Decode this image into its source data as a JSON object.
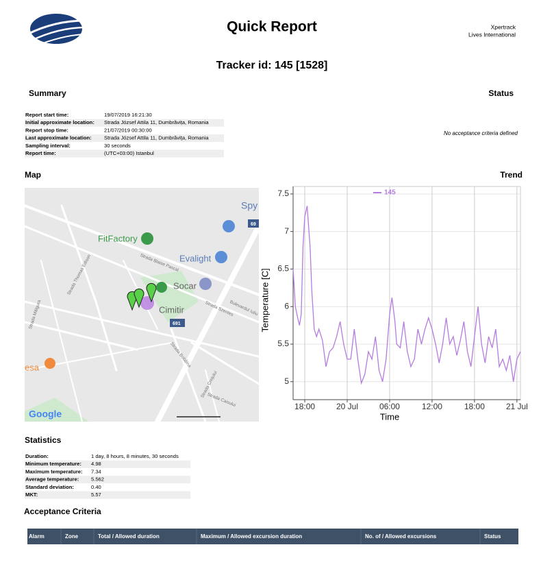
{
  "header": {
    "title": "Quick Report",
    "company": "Xpertrack",
    "company_sub": "Lives International",
    "tracker": "Tracker id: 145 [1528]"
  },
  "summary": {
    "title": "Summary",
    "rows": [
      [
        "Report start time:",
        "19/07/2019 16:21:30"
      ],
      [
        "Initial approximate location:",
        "Strada József Attila 11, Dumbrăvița, Romania"
      ],
      [
        "Report stop time:",
        "21/07/2019 00:30:00"
      ],
      [
        "Last approximate location:",
        "Strada József Attila 11, Dumbrăvița, Romania"
      ],
      [
        "Sampling interval:",
        "30 seconds"
      ],
      [
        "Report time:",
        "(UTC+03:00) Istanbul"
      ]
    ]
  },
  "status": {
    "title": "Status",
    "message": "No acceptance criteria defined"
  },
  "map": {
    "title": "Map",
    "labels": [
      "Spy",
      "FitFactory",
      "Evalight",
      "Socar",
      "Cimitir",
      "691",
      "69",
      "Strada Blaise Pascal",
      "Bulevardul Iuliu",
      "Strada Szentes",
      "Strada Bobâlna",
      "Strada Crețului",
      "Strada Caisului",
      "Strada Thomas Edison",
      "Strada Mălgura",
      "esa",
      "Google"
    ]
  },
  "trend": {
    "title": "Trend"
  },
  "chart_data": {
    "type": "line",
    "xlabel": "Time",
    "ylabel": "Temperature [C]",
    "x": [
      "19 Jul 16:21",
      "19 Jul 16:40",
      "19 Jul 17:00",
      "19 Jul 17:15",
      "19 Jul 17:30",
      "19 Jul 17:45",
      "19 Jul 18:00",
      "19 Jul 18:20",
      "19 Jul 18:45",
      "19 Jul 19:00",
      "19 Jul 19:20",
      "19 Jul 19:40",
      "19 Jul 20:00",
      "19 Jul 20:30",
      "19 Jul 21:00",
      "19 Jul 21:30",
      "19 Jul 22:00",
      "19 Jul 22:30",
      "19 Jul 23:00",
      "19 Jul 23:30",
      "20 Jul 00:00",
      "20 Jul 00:30",
      "20 Jul 01:00",
      "20 Jul 01:30",
      "20 Jul 02:00",
      "20 Jul 02:30",
      "20 Jul 03:00",
      "20 Jul 03:30",
      "20 Jul 04:00",
      "20 Jul 04:30",
      "20 Jul 05:00",
      "20 Jul 05:30",
      "20 Jul 06:00",
      "20 Jul 06:20",
      "20 Jul 06:45",
      "20 Jul 07:00",
      "20 Jul 07:30",
      "20 Jul 08:00",
      "20 Jul 08:30",
      "20 Jul 09:00",
      "20 Jul 09:30",
      "20 Jul 10:00",
      "20 Jul 10:30",
      "20 Jul 11:00",
      "20 Jul 11:30",
      "20 Jul 12:00",
      "20 Jul 12:30",
      "20 Jul 13:00",
      "20 Jul 13:30",
      "20 Jul 14:00",
      "20 Jul 14:30",
      "20 Jul 15:00",
      "20 Jul 15:30",
      "20 Jul 16:00",
      "20 Jul 16:30",
      "20 Jul 17:00",
      "20 Jul 17:30",
      "20 Jul 18:00",
      "20 Jul 18:30",
      "20 Jul 19:00",
      "20 Jul 19:30",
      "20 Jul 20:00",
      "20 Jul 20:30",
      "20 Jul 21:00",
      "20 Jul 21:30",
      "20 Jul 22:00",
      "20 Jul 22:30",
      "20 Jul 23:00",
      "20 Jul 23:30",
      "21 Jul 00:00",
      "21 Jul 00:30"
    ],
    "series": [
      {
        "name": "145",
        "color": "#b57be0",
        "values": [
          6.5,
          6.0,
          5.85,
          5.75,
          5.9,
          6.8,
          7.2,
          7.34,
          6.8,
          6.2,
          5.7,
          5.6,
          5.7,
          5.55,
          5.2,
          5.4,
          5.45,
          5.6,
          5.8,
          5.5,
          5.3,
          5.3,
          5.7,
          5.3,
          4.98,
          5.1,
          5.4,
          5.3,
          5.6,
          5.15,
          5.0,
          5.3,
          5.9,
          6.12,
          5.8,
          5.5,
          5.45,
          5.8,
          5.4,
          5.2,
          5.3,
          5.7,
          5.5,
          5.7,
          5.85,
          5.7,
          5.5,
          5.25,
          5.5,
          5.85,
          5.5,
          5.6,
          5.35,
          5.55,
          5.8,
          5.4,
          5.2,
          5.6,
          6.0,
          5.5,
          5.25,
          5.6,
          5.45,
          5.7,
          5.2,
          5.3,
          5.15,
          5.35,
          5.0,
          5.3,
          5.4
        ]
      }
    ],
    "xlim": [
      "19 Jul 16:21",
      "21 Jul 00:30"
    ],
    "xticks": [
      {
        "value": "19 Jul 18:00",
        "label": "18:00"
      },
      {
        "value": "20 Jul 00:00",
        "label": "20 Jul"
      },
      {
        "value": "20 Jul 06:00",
        "label": "06:00"
      },
      {
        "value": "20 Jul 12:00",
        "label": "12:00"
      },
      {
        "value": "20 Jul 18:00",
        "label": "18:00"
      },
      {
        "value": "21 Jul 00:00",
        "label": "21 Jul"
      }
    ],
    "ylim": [
      4.76,
      7.6
    ],
    "yticks": [
      5,
      5.5,
      6,
      6.5,
      7,
      7.5
    ],
    "grid": true
  },
  "statistics": {
    "title": "Statistics",
    "rows": [
      [
        "Duration:",
        "1 day, 8 hours, 8 minutes, 30 seconds"
      ],
      [
        "Minimum temperature:",
        "4.98"
      ],
      [
        "Maximum temperature:",
        "7.34"
      ],
      [
        "Average temperature:",
        "5.562"
      ],
      [
        "Standard deviation:",
        "0.40"
      ],
      [
        "MKT:",
        "5.57"
      ]
    ]
  },
  "acceptance": {
    "title": "Acceptance Criteria",
    "columns": [
      "Alarm",
      "Zone",
      "Total / Allowed duration",
      "Maximum / Allowed excursion duration",
      "No. of / Allowed excursions",
      "Status"
    ]
  }
}
